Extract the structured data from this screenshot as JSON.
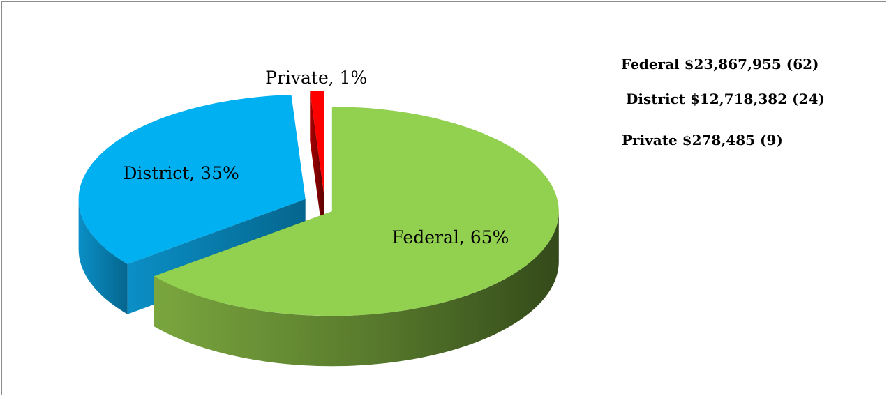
{
  "chart_data": {
    "type": "pie",
    "title": "",
    "categories": [
      "Federal",
      "District",
      "Private"
    ],
    "values": [
      65,
      35,
      1
    ],
    "unit": "%",
    "labels": [
      "Federal, 65%",
      "District, 35%",
      "Private, 1%"
    ],
    "colors": {
      "Federal": "#92d050",
      "District": "#00b0f0",
      "Private": "#ff0000"
    },
    "style": "3d-exploded",
    "annotations": [
      "Federal $23,867,955 (62)",
      "District $12,718,382 (24)",
      "Private $278,485 (9)"
    ]
  }
}
